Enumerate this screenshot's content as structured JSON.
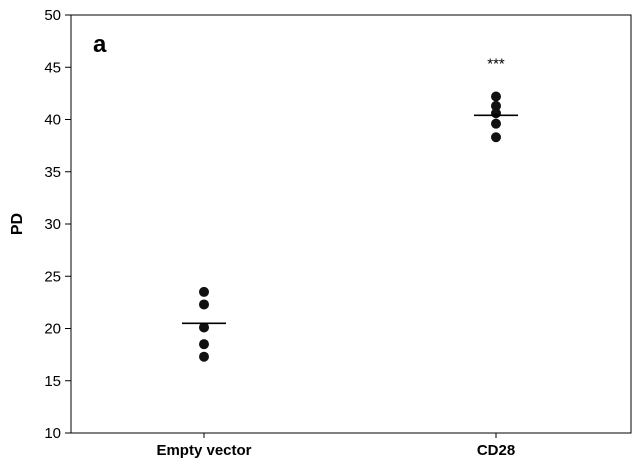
{
  "chart_data": {
    "type": "scatter",
    "panel_label": "a",
    "xlabel": "",
    "ylabel": "PD",
    "ylim": [
      10,
      50
    ],
    "yticks": [
      10,
      15,
      20,
      25,
      30,
      35,
      40,
      45,
      50
    ],
    "grid": false,
    "legend": "none",
    "categories": [
      "Empty vector",
      "CD28"
    ],
    "series": [
      {
        "category": "Empty vector",
        "points": [
          23.5,
          22.3,
          20.1,
          18.5,
          17.3
        ],
        "mean": 20.5,
        "annotation": ""
      },
      {
        "category": "CD28",
        "points": [
          42.2,
          41.3,
          40.6,
          39.6,
          38.3
        ],
        "mean": 40.4,
        "annotation": "***"
      }
    ],
    "marker_color": "#111111"
  }
}
